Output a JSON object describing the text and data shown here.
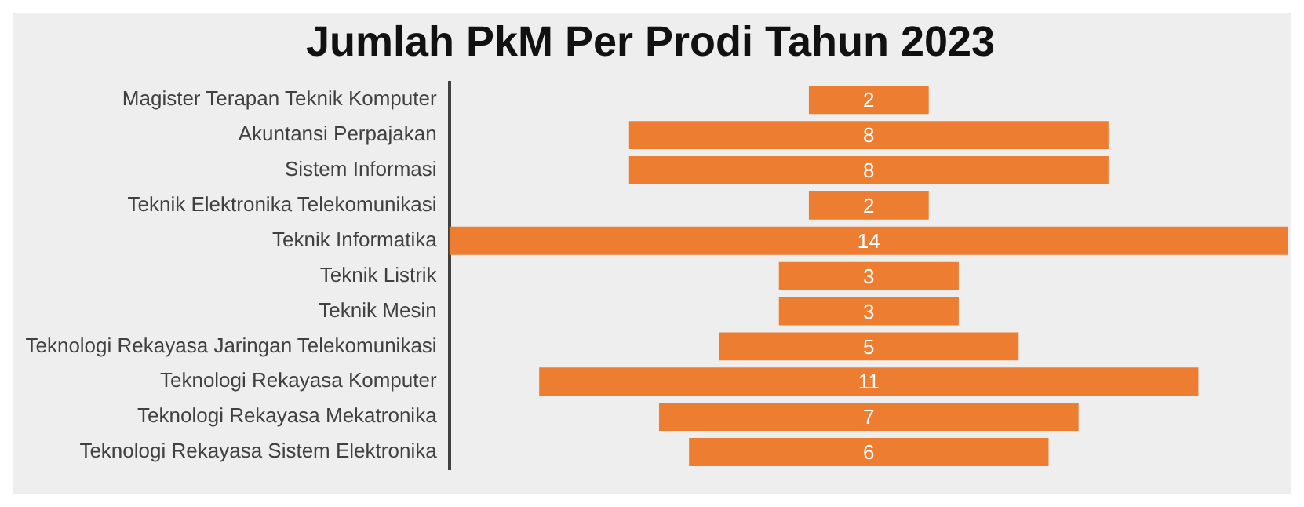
{
  "chart_data": {
    "type": "other",
    "title": "Jumlah PkM Per Prodi Tahun 2023",
    "categories": [
      "Magister Terapan Teknik Komputer",
      "Akuntansi Perpajakan",
      "Sistem Informasi",
      "Teknik Elektronika Telekomunikasi",
      "Teknik Informatika",
      "Teknik Listrik",
      "Teknik Mesin",
      "Teknologi Rekayasa Jaringan Telekomunikasi",
      "Teknologi Rekayasa Komputer",
      "Teknologi Rekayasa Mekatronika",
      "Teknologi Rekayasa Sistem Elektronika"
    ],
    "values": [
      2,
      8,
      8,
      2,
      14,
      3,
      3,
      5,
      11,
      7,
      6
    ],
    "color": "#ed7d31",
    "data_labels": true
  }
}
